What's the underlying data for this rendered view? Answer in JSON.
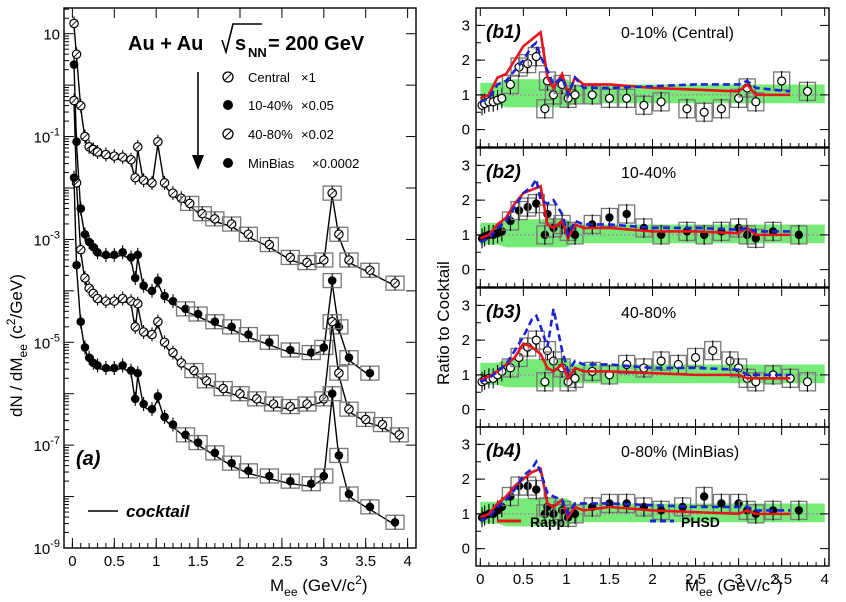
{
  "colors": {
    "rapp": "#e8141b",
    "phsd": "#1a23d6",
    "band": "#5fe85f",
    "sys": "#777777",
    "ref_line": "#9a9a9a"
  },
  "chart_data": [
    {
      "type": "scatter",
      "panel_label": "(a)",
      "title": "Au + Au",
      "title_energy": "s",
      "title_energy_sub": "NN",
      "title_energy_value": " = 200 GeV",
      "xlabel": "M",
      "xlabel_sub": "ee",
      "xlabel_unit": " (GeV/c",
      "xlabel_unit_sup": "2",
      "xlabel_unit_end": ")",
      "ylabel": "dN / dM",
      "ylabel_sub": "ee",
      "ylabel_unit": " (c",
      "ylabel_unit_sup": "2",
      "ylabel_unit_end": "/GeV)",
      "xlim": [
        -0.1,
        4.1
      ],
      "ylim_log10": [
        -9,
        1.5
      ],
      "y_scale": "log",
      "xticks": [
        0,
        0.5,
        1,
        1.5,
        2,
        2.5,
        3,
        3.5,
        4
      ],
      "xtick_labels": [
        "0",
        "0.5",
        "1",
        "1.5",
        "2",
        "2.5",
        "3",
        "3.5",
        "4"
      ],
      "yticks_log10": [
        1,
        -1,
        -3,
        -5,
        -7,
        -9
      ],
      "ytick_labels": [
        "10",
        "10",
        "10",
        "10",
        "10",
        "10"
      ],
      "ytick_exponents": [
        "",
        "-1",
        "-3",
        "-5",
        "-7",
        "-9"
      ],
      "legend_position": "top-right",
      "cocktail_label": "cocktail",
      "series": [
        {
          "name": "Central",
          "scale_label": "×1",
          "marker": "open",
          "x": [
            0.02,
            0.05,
            0.1,
            0.15,
            0.2,
            0.25,
            0.3,
            0.4,
            0.5,
            0.6,
            0.7,
            0.75,
            0.78,
            0.85,
            0.95,
            1.02,
            1.1,
            1.2,
            1.3,
            1.4,
            1.55,
            1.7,
            1.9,
            2.1,
            2.35,
            2.6,
            2.8,
            3.0,
            3.1,
            3.18,
            3.3,
            3.55,
            3.85
          ],
          "y_log10": [
            1.2,
            0.6,
            -0.4,
            -1.0,
            -1.2,
            -1.25,
            -1.3,
            -1.35,
            -1.38,
            -1.4,
            -1.45,
            -1.8,
            -1.2,
            -1.85,
            -1.9,
            -1.1,
            -1.9,
            -2.1,
            -2.2,
            -2.3,
            -2.5,
            -2.6,
            -2.7,
            -2.9,
            -3.1,
            -3.35,
            -3.45,
            -3.4,
            -2.1,
            -2.9,
            -3.4,
            -3.6,
            -3.85
          ]
        },
        {
          "name": "10-40%",
          "scale_label": "×0.05",
          "marker": "filled",
          "x": [
            0.02,
            0.05,
            0.1,
            0.15,
            0.2,
            0.25,
            0.3,
            0.4,
            0.5,
            0.6,
            0.7,
            0.75,
            0.78,
            0.85,
            0.95,
            1.02,
            1.1,
            1.2,
            1.35,
            1.5,
            1.7,
            1.9,
            2.1,
            2.35,
            2.6,
            2.85,
            3.0,
            3.1,
            3.18,
            3.3,
            3.55
          ],
          "y_log10": [
            0.4,
            -1.1,
            -2.4,
            -2.9,
            -3.05,
            -3.15,
            -3.25,
            -3.3,
            -3.3,
            -3.25,
            -3.35,
            -3.75,
            -3.3,
            -3.9,
            -4.0,
            -3.8,
            -4.1,
            -4.2,
            -4.35,
            -4.45,
            -4.6,
            -4.7,
            -4.85,
            -5.0,
            -5.15,
            -5.2,
            -5.1,
            -3.8,
            -4.7,
            -5.3,
            -5.6
          ]
        },
        {
          "name": "40-80%",
          "scale_label": "×0.02",
          "marker": "open",
          "x": [
            0.02,
            0.05,
            0.1,
            0.15,
            0.2,
            0.25,
            0.3,
            0.4,
            0.5,
            0.6,
            0.7,
            0.75,
            0.78,
            0.85,
            0.95,
            1.02,
            1.1,
            1.2,
            1.3,
            1.45,
            1.6,
            1.8,
            2.0,
            2.2,
            2.4,
            2.6,
            2.8,
            3.0,
            3.1,
            3.18,
            3.3,
            3.5,
            3.7,
            3.9
          ],
          "y_log10": [
            -0.3,
            -1.9,
            -3.2,
            -3.75,
            -3.95,
            -4.05,
            -4.15,
            -4.2,
            -4.2,
            -4.15,
            -4.2,
            -4.7,
            -4.25,
            -4.8,
            -4.85,
            -4.6,
            -5.0,
            -5.2,
            -5.4,
            -5.55,
            -5.75,
            -5.9,
            -6.0,
            -6.1,
            -6.2,
            -6.25,
            -6.2,
            -6.1,
            -4.6,
            -5.6,
            -6.3,
            -6.5,
            -6.6,
            -6.8
          ]
        },
        {
          "name": "MinBias",
          "scale_label": "×0.0002",
          "marker": "filled",
          "x": [
            0.02,
            0.05,
            0.1,
            0.15,
            0.2,
            0.25,
            0.3,
            0.4,
            0.5,
            0.6,
            0.7,
            0.75,
            0.78,
            0.85,
            0.95,
            1.02,
            1.1,
            1.2,
            1.35,
            1.5,
            1.7,
            1.9,
            2.1,
            2.35,
            2.6,
            2.85,
            3.0,
            3.1,
            3.18,
            3.3,
            3.55,
            3.85
          ],
          "y_log10": [
            -1.8,
            -3.5,
            -4.6,
            -5.1,
            -5.3,
            -5.4,
            -5.45,
            -5.5,
            -5.5,
            -5.45,
            -5.55,
            -6.1,
            -5.6,
            -6.2,
            -6.3,
            -6.05,
            -6.45,
            -6.6,
            -6.8,
            -6.95,
            -7.15,
            -7.35,
            -7.5,
            -7.6,
            -7.7,
            -7.75,
            -7.6,
            -6.0,
            -7.2,
            -7.95,
            -8.2,
            -8.5
          ]
        }
      ]
    },
    {
      "type": "line",
      "panel_label": "(b1)",
      "annotation": "0-10% (Central)",
      "xlim": [
        -0.05,
        4.05
      ],
      "ylim": [
        -0.5,
        3.5
      ],
      "yticks": [
        0,
        1,
        2,
        3
      ],
      "ytick_labels": [
        "0",
        "1",
        "2",
        "3"
      ],
      "marker": "open",
      "data_x": [
        0.02,
        0.05,
        0.1,
        0.15,
        0.2,
        0.25,
        0.35,
        0.45,
        0.55,
        0.65,
        0.75,
        0.78,
        0.85,
        0.95,
        1.02,
        1.1,
        1.3,
        1.5,
        1.7,
        1.9,
        2.1,
        2.4,
        2.6,
        2.8,
        3.0,
        3.1,
        3.2,
        3.5,
        3.8
      ],
      "data_y": [
        0.7,
        0.75,
        0.8,
        0.8,
        0.85,
        0.9,
        1.3,
        1.8,
        1.9,
        2.1,
        0.6,
        1.4,
        1.0,
        1.3,
        0.9,
        1.0,
        1.0,
        0.9,
        0.9,
        0.7,
        0.8,
        0.6,
        0.5,
        0.6,
        0.9,
        1.2,
        0.8,
        1.4,
        1.1
      ],
      "rapp_x": [
        0,
        0.1,
        0.2,
        0.3,
        0.4,
        0.5,
        0.6,
        0.7,
        0.78,
        0.85,
        0.95,
        1.02,
        1.1,
        1.2,
        1.5,
        2.0,
        2.5,
        3.0,
        3.1,
        3.2,
        3.6
      ],
      "rapp_y": [
        0.9,
        1.0,
        1.5,
        1.6,
        2.0,
        2.4,
        2.6,
        2.8,
        1.5,
        1.2,
        1.6,
        1.0,
        1.5,
        1.3,
        1.3,
        1.2,
        1.15,
        1.1,
        1.3,
        1.0,
        1.0
      ],
      "phsd_x": [
        0,
        0.1,
        0.2,
        0.3,
        0.4,
        0.5,
        0.6,
        0.65,
        0.7,
        0.78,
        0.85,
        0.95,
        1.02,
        1.1,
        1.2,
        1.5,
        2.0,
        2.5,
        3.0,
        3.1,
        3.2,
        3.6
      ],
      "phsd_y": [
        0.8,
        0.9,
        1.3,
        1.4,
        1.7,
        2.0,
        2.4,
        2.5,
        2.1,
        1.7,
        1.3,
        1.5,
        1.0,
        1.5,
        1.2,
        1.2,
        1.25,
        1.3,
        1.3,
        1.4,
        1.2,
        1.1
      ]
    },
    {
      "type": "line",
      "panel_label": "(b2)",
      "annotation": "10-40%",
      "xlim": [
        -0.05,
        4.05
      ],
      "ylim": [
        -0.5,
        3.5
      ],
      "yticks": [
        0,
        1,
        2,
        3
      ],
      "ytick_labels": [
        "0",
        "1",
        "2",
        "3"
      ],
      "marker": "filled",
      "data_x": [
        0.02,
        0.05,
        0.1,
        0.15,
        0.2,
        0.25,
        0.35,
        0.45,
        0.55,
        0.65,
        0.75,
        0.78,
        0.85,
        0.95,
        1.02,
        1.1,
        1.3,
        1.5,
        1.7,
        1.9,
        2.1,
        2.4,
        2.6,
        2.8,
        3.0,
        3.1,
        3.2,
        3.4,
        3.7
      ],
      "data_y": [
        0.9,
        0.95,
        1.0,
        1.0,
        1.05,
        1.1,
        1.4,
        1.7,
        1.8,
        1.9,
        1.0,
        1.6,
        1.2,
        1.3,
        1.1,
        1.0,
        1.3,
        1.5,
        1.6,
        1.2,
        1.0,
        1.1,
        1.0,
        1.1,
        1.2,
        1.0,
        0.9,
        1.1,
        1.0
      ],
      "rapp_x": [
        0,
        0.1,
        0.2,
        0.3,
        0.4,
        0.5,
        0.6,
        0.7,
        0.78,
        0.85,
        0.95,
        1.02,
        1.1,
        1.2,
        1.5,
        2.0,
        2.5,
        3.0,
        3.1,
        3.2,
        3.6
      ],
      "rapp_y": [
        0.9,
        1.0,
        1.3,
        1.5,
        1.9,
        2.2,
        2.3,
        2.4,
        1.3,
        1.2,
        1.4,
        0.9,
        1.3,
        1.2,
        1.2,
        1.1,
        1.1,
        1.05,
        1.2,
        1.0,
        1.0
      ],
      "phsd_x": [
        0,
        0.1,
        0.2,
        0.3,
        0.4,
        0.5,
        0.6,
        0.65,
        0.7,
        0.78,
        0.85,
        0.95,
        1.02,
        1.1,
        1.2,
        1.5,
        2.0,
        2.5,
        3.0,
        3.1,
        3.2,
        3.6
      ],
      "phsd_y": [
        0.8,
        0.9,
        1.2,
        1.4,
        1.8,
        2.2,
        2.4,
        2.6,
        2.0,
        1.9,
        2.0,
        1.6,
        1.0,
        1.4,
        1.3,
        1.3,
        1.2,
        1.2,
        1.15,
        1.2,
        1.1,
        1.1
      ]
    },
    {
      "type": "line",
      "panel_label": "(b3)",
      "annotation": "40-80%",
      "xlim": [
        -0.05,
        4.05
      ],
      "ylim": [
        -0.5,
        3.5
      ],
      "yticks": [
        0,
        1,
        2,
        3
      ],
      "ytick_labels": [
        "0",
        "1",
        "2",
        "3"
      ],
      "marker": "open",
      "data_x": [
        0.02,
        0.05,
        0.1,
        0.15,
        0.2,
        0.25,
        0.35,
        0.45,
        0.55,
        0.65,
        0.75,
        0.78,
        0.85,
        0.95,
        1.02,
        1.1,
        1.3,
        1.5,
        1.7,
        1.9,
        2.1,
        2.3,
        2.5,
        2.7,
        2.9,
        3.0,
        3.1,
        3.2,
        3.4,
        3.6,
        3.8
      ],
      "data_y": [
        0.8,
        0.85,
        0.9,
        0.9,
        1.0,
        1.1,
        1.2,
        1.5,
        1.8,
        2.0,
        0.8,
        1.7,
        1.4,
        1.2,
        0.8,
        0.9,
        1.1,
        1.0,
        1.3,
        1.2,
        1.4,
        1.3,
        1.5,
        1.7,
        1.4,
        1.2,
        0.9,
        0.8,
        1.0,
        0.9,
        0.8
      ],
      "rapp_x": [
        0,
        0.1,
        0.2,
        0.3,
        0.4,
        0.5,
        0.6,
        0.7,
        0.78,
        0.85,
        0.95,
        1.02,
        1.1,
        1.2,
        1.5,
        2.0,
        2.5,
        3.0,
        3.1,
        3.2,
        3.6
      ],
      "rapp_y": [
        0.85,
        0.95,
        1.1,
        1.3,
        1.5,
        1.9,
        1.8,
        1.6,
        1.2,
        1.1,
        1.3,
        0.9,
        1.2,
        1.1,
        1.1,
        1.05,
        1.0,
        1.0,
        0.9,
        0.9,
        0.9
      ],
      "phsd_x": [
        0,
        0.1,
        0.2,
        0.3,
        0.4,
        0.5,
        0.6,
        0.65,
        0.7,
        0.78,
        0.85,
        0.95,
        1.02,
        1.1,
        1.2,
        1.5,
        2.0,
        2.5,
        3.0,
        3.1,
        3.2,
        3.6
      ],
      "phsd_y": [
        0.8,
        0.9,
        1.1,
        1.3,
        1.7,
        2.1,
        2.6,
        2.7,
        2.4,
        1.8,
        2.9,
        1.7,
        1.1,
        1.4,
        1.3,
        1.3,
        1.2,
        1.2,
        1.15,
        1.0,
        1.0,
        1.0
      ]
    },
    {
      "type": "line",
      "panel_label": "(b4)",
      "annotation": "0-80% (MinBias)",
      "xlim": [
        -0.05,
        4.05
      ],
      "ylim": [
        -0.5,
        3.5
      ],
      "yticks": [
        0,
        1,
        2,
        3
      ],
      "ytick_labels": [
        "0",
        "1",
        "2",
        "3"
      ],
      "marker": "filled",
      "legend": [
        {
          "name": "Rapp",
          "style": "solid"
        },
        {
          "name": "PHSD",
          "style": "dashed"
        }
      ],
      "data_x": [
        0.02,
        0.05,
        0.1,
        0.15,
        0.2,
        0.25,
        0.35,
        0.45,
        0.55,
        0.65,
        0.75,
        0.78,
        0.85,
        0.95,
        1.02,
        1.1,
        1.3,
        1.5,
        1.7,
        1.9,
        2.1,
        2.35,
        2.6,
        2.8,
        3.0,
        3.1,
        3.2,
        3.4,
        3.7
      ],
      "data_y": [
        0.9,
        0.95,
        1.0,
        1.0,
        1.1,
        1.2,
        1.5,
        1.8,
        1.8,
        1.7,
        1.0,
        1.2,
        1.0,
        1.1,
        0.9,
        1.0,
        1.2,
        1.3,
        1.3,
        1.2,
        1.1,
        1.2,
        1.5,
        1.3,
        1.3,
        1.1,
        1.0,
        1.1,
        1.1
      ],
      "rapp_x": [
        0,
        0.1,
        0.2,
        0.3,
        0.4,
        0.5,
        0.6,
        0.7,
        0.78,
        0.85,
        0.95,
        1.02,
        1.1,
        1.2,
        1.5,
        2.0,
        2.5,
        3.0,
        3.1,
        3.2,
        3.6
      ],
      "rapp_y": [
        0.9,
        1.0,
        1.3,
        1.5,
        1.8,
        2.0,
        2.2,
        2.3,
        1.3,
        1.2,
        1.4,
        0.9,
        1.2,
        1.1,
        1.2,
        1.1,
        1.05,
        1.0,
        1.1,
        1.0,
        1.0
      ],
      "phsd_x": [
        0,
        0.1,
        0.2,
        0.3,
        0.4,
        0.5,
        0.6,
        0.65,
        0.7,
        0.78,
        0.85,
        0.95,
        1.02,
        1.1,
        1.2,
        1.5,
        2.0,
        2.5,
        3.0,
        3.1,
        3.2,
        3.6
      ],
      "phsd_y": [
        0.8,
        0.9,
        1.2,
        1.4,
        1.7,
        2.1,
        2.3,
        2.5,
        2.2,
        1.6,
        1.5,
        1.4,
        1.0,
        1.3,
        1.3,
        1.3,
        1.25,
        1.2,
        1.2,
        1.2,
        1.1,
        1.1
      ]
    }
  ],
  "ratio_axis": {
    "ylabel": "Ratio to Cocktail",
    "xlabel": "M",
    "xlabel_sub": "ee",
    "xlabel_unit": " (GeV/c",
    "xlabel_unit_sup": "2",
    "xlabel_unit_end": ")",
    "xticks": [
      0,
      0.5,
      1,
      1.5,
      2,
      2.5,
      3,
      3.5,
      4
    ],
    "xtick_labels": [
      "0",
      "0.5",
      "1",
      "1.5",
      "2",
      "2.5",
      "3",
      "3.5",
      "4"
    ]
  }
}
